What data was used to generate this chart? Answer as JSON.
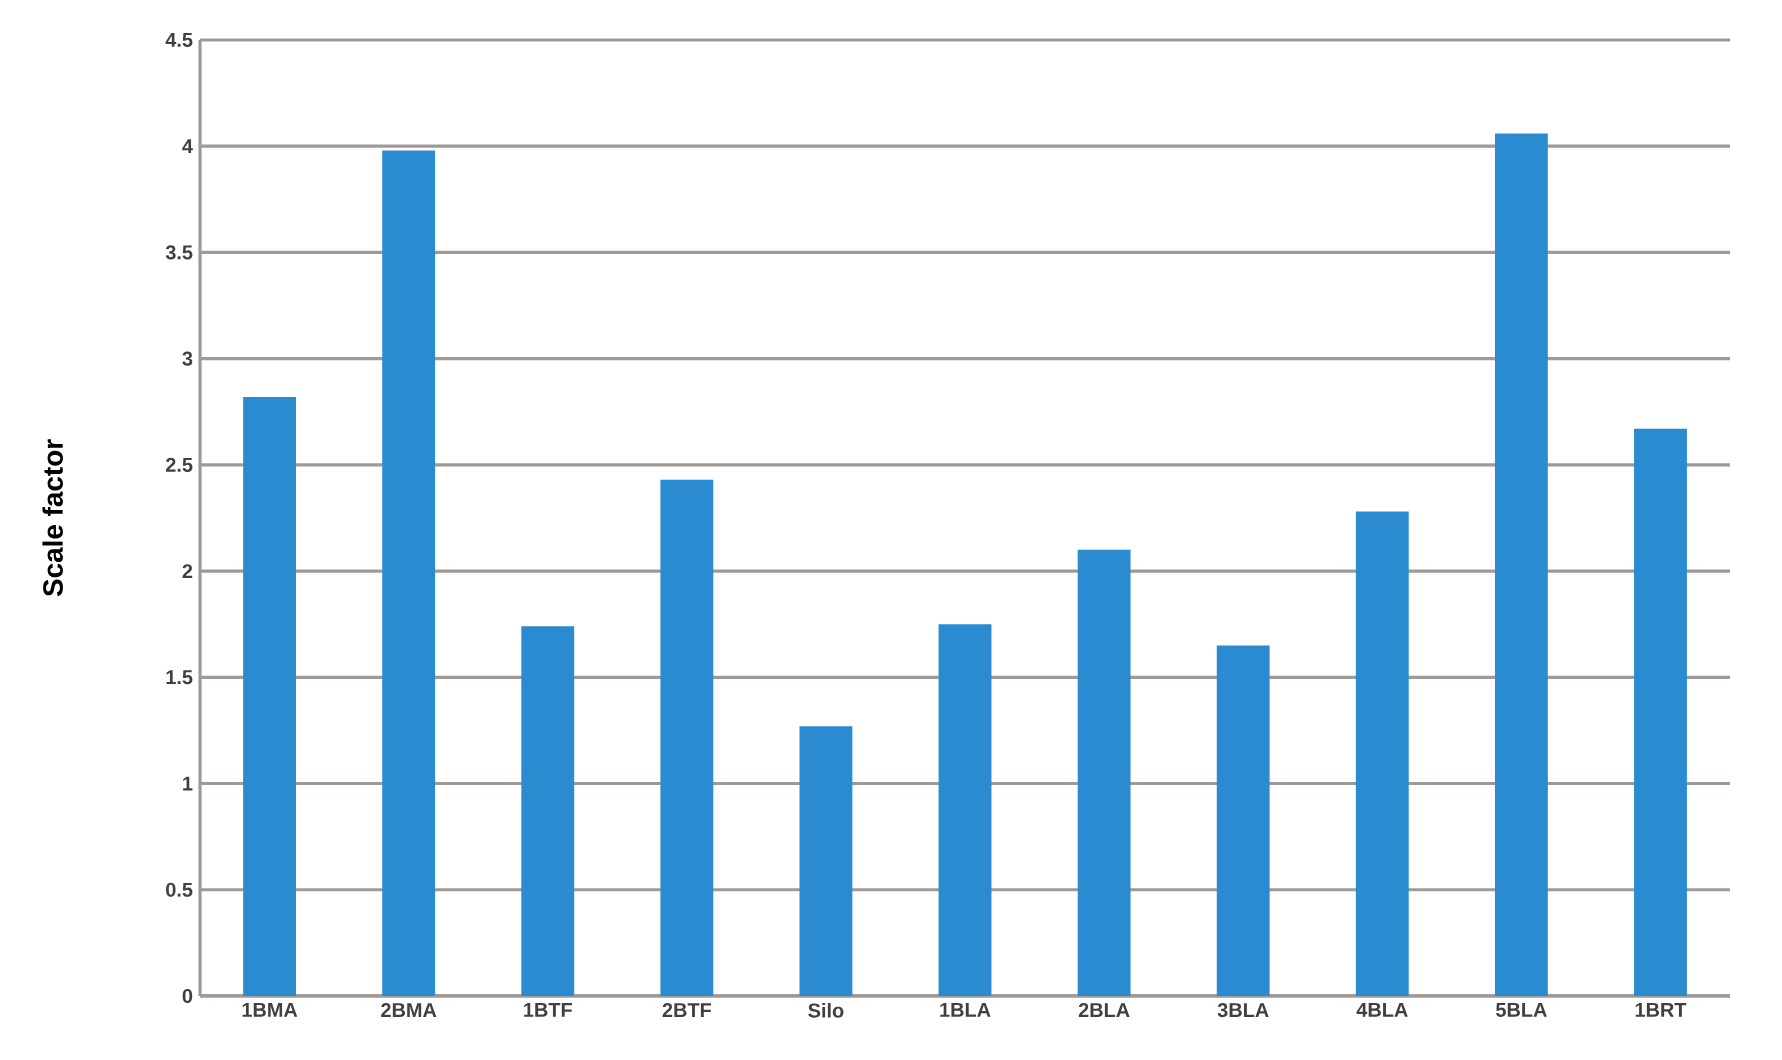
{
  "chart_data": {
    "type": "bar",
    "ylabel": "Scale factor",
    "categories": [
      "1BMA",
      "2BMA",
      "1BTF",
      "2BTF",
      "Silo",
      "1BLA",
      "2BLA",
      "3BLA",
      "4BLA",
      "5BLA",
      "1BRT"
    ],
    "values": [
      2.82,
      3.98,
      1.74,
      2.43,
      1.27,
      1.75,
      2.1,
      1.65,
      2.28,
      4.06,
      2.67
    ],
    "color": "#2a8bd0",
    "ylim": [
      0,
      4.5
    ],
    "yticks": [
      0,
      0.5,
      1,
      1.5,
      2,
      2.5,
      3,
      3.5,
      4,
      4.5
    ],
    "grid": "y"
  }
}
